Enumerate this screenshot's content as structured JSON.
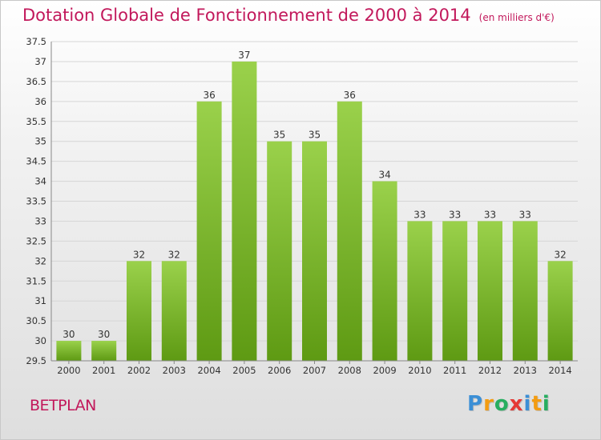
{
  "title": "Dotation Globale de Fonctionnement de 2000 à 2014",
  "subtitle": "(en milliers d'€)",
  "commune": "BETPLAN",
  "logo": {
    "letters": [
      "P",
      "r",
      "o",
      "x",
      "i",
      "t",
      "i"
    ],
    "colors": [
      "#3b8fd6",
      "#f39c12",
      "#27ae60",
      "#e53935",
      "#3b8fd6",
      "#f39c12",
      "#27ae60"
    ]
  },
  "colors": {
    "title": "#c2185b",
    "bar_top": "#9ad14b",
    "bar_bottom": "#5e9a13",
    "grid": "#d6d6d6"
  },
  "chart_data": {
    "type": "bar",
    "categories": [
      "2000",
      "2001",
      "2002",
      "2003",
      "2004",
      "2005",
      "2006",
      "2007",
      "2008",
      "2009",
      "2010",
      "2011",
      "2012",
      "2013",
      "2014"
    ],
    "values": [
      30,
      30,
      32,
      32,
      36,
      37,
      35,
      35,
      36,
      34,
      33,
      33,
      33,
      33,
      32
    ],
    "ylim": [
      29.5,
      37.5
    ],
    "yticks": [
      "29.5",
      "30",
      "30.5",
      "31",
      "31.5",
      "32",
      "32.5",
      "33",
      "33.5",
      "34",
      "34.5",
      "35",
      "35.5",
      "36",
      "36.5",
      "37",
      "37.5"
    ],
    "grid": true,
    "xlabel": "",
    "ylabel": ""
  }
}
